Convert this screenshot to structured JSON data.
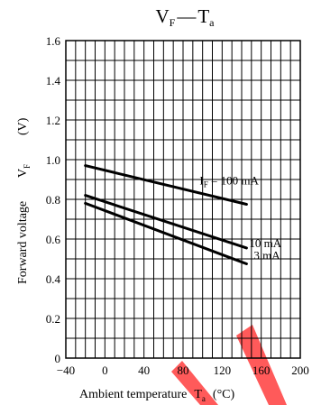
{
  "chart_data": {
    "type": "line",
    "title": {
      "main": "V",
      "main_sub": "F",
      "dash": "—",
      "var": "T",
      "var_sub": "a"
    },
    "xlabel": {
      "text": "Ambient temperature",
      "var": "T",
      "var_sub": "a",
      "unit": "(°C)"
    },
    "ylabel": {
      "text": "Forward voltage",
      "unit": "(V)",
      "var": "V",
      "var_sub": "F"
    },
    "xlim": [
      -40,
      200
    ],
    "ylim": [
      0,
      1.6
    ],
    "xticks": [
      "−40",
      "0",
      "40",
      "80",
      "120",
      "160",
      "200"
    ],
    "yticks": [
      "0",
      "0.2",
      "0.4",
      "0.6",
      "0.8",
      "1.0",
      "1.2",
      "1.4",
      "1.6"
    ],
    "grid": true,
    "series": [
      {
        "label_pre": "I",
        "label_sub": "F",
        "label_post": " = 100 mA",
        "x": [
          -20,
          145
        ],
        "y": [
          0.97,
          0.775
        ]
      },
      {
        "label_pre": "",
        "label_sub": "",
        "label_post": "10 mA",
        "x": [
          -20,
          145
        ],
        "y": [
          0.82,
          0.555
        ]
      },
      {
        "label_pre": "",
        "label_sub": "",
        "label_post": "3 mA",
        "x": [
          -20,
          145
        ],
        "y": [
          0.78,
          0.475
        ]
      }
    ],
    "watermark_color": "#ff5a5a"
  }
}
